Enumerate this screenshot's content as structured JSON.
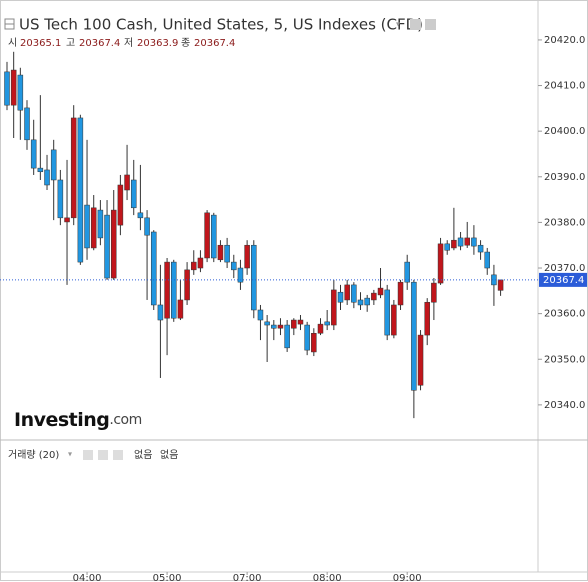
{
  "chart_data": {
    "type": "candlestick",
    "title": "US Tech 100 Cash, United States, 5, US Indexes (CFD)",
    "ohlc_labels": [
      "시",
      "고",
      "저",
      "종"
    ],
    "categories": [
      null,
      null,
      null,
      null,
      null,
      null,
      null,
      null,
      null,
      null,
      null,
      null,
      "04:00",
      null,
      null,
      null,
      null,
      null,
      null,
      null,
      null,
      null,
      null,
      null,
      "05:00",
      null,
      null,
      null,
      null,
      null,
      null,
      null,
      null,
      null,
      null,
      null,
      "07:00",
      null,
      null,
      null,
      null,
      null,
      null,
      null,
      null,
      null,
      null,
      null,
      "08:00",
      null,
      null,
      null,
      null,
      null,
      null,
      null,
      null,
      null,
      null,
      null,
      "09:00",
      null,
      null,
      null,
      null,
      null,
      null,
      null,
      null,
      null,
      null,
      null,
      null,
      null,
      null
    ],
    "open": [
      20413.0,
      20405.7,
      20412.3,
      20405.1,
      20398.1,
      20391.9,
      20391.5,
      20395.9,
      20389.3,
      20380.1,
      20381.0,
      20402.9,
      20383.8,
      20374.4,
      20382.7,
      20381.6,
      20367.8,
      20379.4,
      20387.1,
      20389.3,
      20382.1,
      20381.0,
      20377.9,
      20361.9,
      20359.0,
      20371.3,
      20359.0,
      20363.0,
      20369.6,
      20370.0,
      20372.2,
      20381.6,
      20371.8,
      20375.0,
      20371.3,
      20370.0,
      20370.0,
      20375.0,
      20360.8,
      20358.2,
      20357.5,
      20356.8,
      20357.5,
      20356.8,
      20357.7,
      20357.5,
      20351.6,
      20355.7,
      20358.2,
      20357.5,
      20364.7,
      20363.0,
      20366.3,
      20363.0,
      20363.4,
      20363.0,
      20364.1,
      20365.2,
      20355.3,
      20361.9,
      20371.3,
      20366.9,
      20344.3,
      20355.3,
      20362.5,
      20366.7,
      20375.3,
      20374.4,
      20376.6,
      20375.0,
      20376.6,
      20375.0,
      20373.5,
      20368.5,
      20365.1
    ],
    "high": [
      20415.2,
      20417.4,
      20413.9,
      20406.8,
      20402.5,
      20407.9,
      20394.8,
      20398.1,
      20391.5,
      20393.7,
      20405.7,
      20403.6,
      20398.1,
      20386.0,
      20384.9,
      20384.9,
      20387.1,
      20390.4,
      20397.0,
      20393.7,
      20392.6,
      20382.7,
      20378.3,
      20370.7,
      20372.2,
      20371.8,
      20367.4,
      20371.3,
      20373.9,
      20373.9,
      20382.7,
      20382.1,
      20376.1,
      20376.6,
      20372.9,
      20371.8,
      20376.1,
      20376.1,
      20361.9,
      20359.7,
      20358.6,
      20359.0,
      20358.6,
      20359.0,
      20359.7,
      20358.2,
      20356.8,
      20359.0,
      20360.8,
      20367.4,
      20366.3,
      20367.4,
      20366.9,
      20364.7,
      20364.1,
      20365.2,
      20370.0,
      20366.3,
      20363.0,
      20367.4,
      20372.9,
      20367.4,
      20356.4,
      20363.4,
      20367.8,
      20376.6,
      20376.1,
      20383.2,
      20377.9,
      20380.1,
      20379.4,
      20376.1,
      20374.4,
      20370.7,
      20367.4
    ],
    "low": [
      20404.6,
      20398.5,
      20398.1,
      20395.9,
      20390.4,
      20389.3,
      20387.1,
      20380.5,
      20379.4,
      20366.3,
      20379.4,
      20370.7,
      20371.8,
      20373.9,
      20375.0,
      20367.4,
      20367.4,
      20377.2,
      20384.9,
      20381.6,
      20378.3,
      20363.0,
      20360.8,
      20345.9,
      20350.9,
      20358.2,
      20358.6,
      20361.9,
      20368.5,
      20369.1,
      20371.3,
      20371.3,
      20371.3,
      20370.0,
      20367.8,
      20365.2,
      20368.5,
      20359.0,
      20354.2,
      20349.4,
      20354.2,
      20355.3,
      20351.6,
      20355.3,
      20356.4,
      20350.9,
      20350.7,
      20355.3,
      20356.4,
      20356.4,
      20360.8,
      20361.9,
      20361.2,
      20360.8,
      20360.4,
      20361.9,
      20363.4,
      20354.2,
      20354.6,
      20360.8,
      20365.2,
      20337.1,
      20343.2,
      20353.1,
      20358.6,
      20366.3,
      20372.9,
      20373.9,
      20373.9,
      20374.4,
      20372.9,
      20371.8,
      20368.5,
      20361.7,
      20363.9
    ],
    "close": [
      20405.7,
      20413.4,
      20404.6,
      20398.1,
      20391.9,
      20391.1,
      20388.2,
      20389.3,
      20381.0,
      20381.0,
      20402.9,
      20371.3,
      20374.4,
      20383.2,
      20376.6,
      20367.8,
      20382.7,
      20388.2,
      20390.4,
      20383.2,
      20381.0,
      20377.2,
      20361.9,
      20358.6,
      20371.3,
      20359.0,
      20363.0,
      20369.6,
      20371.3,
      20372.2,
      20382.1,
      20372.2,
      20375.0,
      20371.3,
      20369.6,
      20366.9,
      20375.0,
      20360.8,
      20358.6,
      20357.5,
      20356.8,
      20357.5,
      20352.5,
      20358.6,
      20358.6,
      20352.0,
      20355.7,
      20357.7,
      20357.5,
      20365.2,
      20362.5,
      20366.3,
      20362.5,
      20361.9,
      20361.9,
      20364.5,
      20365.6,
      20355.3,
      20361.9,
      20366.9,
      20366.9,
      20343.2,
      20355.3,
      20362.5,
      20366.7,
      20375.3,
      20373.9,
      20376.1,
      20374.8,
      20376.6,
      20374.8,
      20373.5,
      20370.0,
      20366.3,
      20367.4
    ],
    "ylim": [
      20332.3,
      20427.0
    ],
    "yticks": [
      {
        "value": 20340,
        "label": "20340.0"
      },
      {
        "value": 20350,
        "label": "20350.0"
      },
      {
        "value": 20360,
        "label": "20360.0"
      },
      {
        "value": 20370,
        "label": "20370.0"
      },
      {
        "value": 20380,
        "label": "20380.0"
      },
      {
        "value": 20390,
        "label": "20390.0"
      },
      {
        "value": 20400,
        "label": "20400.0"
      },
      {
        "value": 20410,
        "label": "20410.0"
      },
      {
        "value": 20420,
        "label": "20420.0"
      }
    ],
    "up_color": "#c0161c",
    "down_color": "#2196e0",
    "last_price_color": "#2b5cd8",
    "watermark": "Investing",
    "watermark_suffix": ".com",
    "volume_title": "거래량 (20)",
    "volume_values": [
      "없음",
      "없음"
    ]
  }
}
